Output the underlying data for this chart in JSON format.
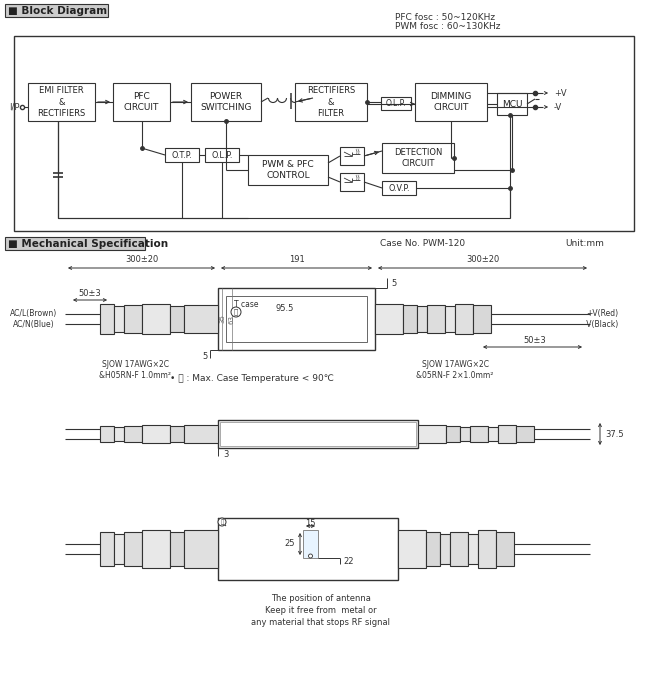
{
  "bg_color": "#ffffff",
  "line_color": "#333333",
  "pfc_text": "PFC fosc : 50~120KHz",
  "pwm_text": "PWM fosc : 60~130KHz",
  "case_no": "Case No. PWM-120",
  "unit": "Unit:mm",
  "temp_note": "• Ⓜ : Max. Case Temperature < 90℃",
  "antenna_note": "The position of antenna\nKeep it free from  metal or\nany material that stops RF signal"
}
